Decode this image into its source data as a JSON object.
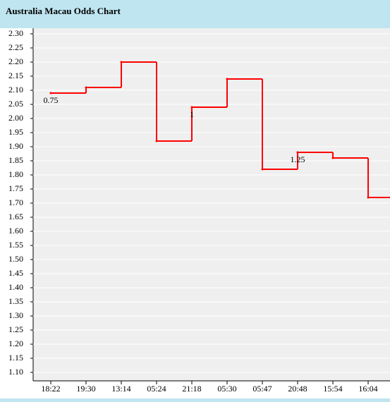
{
  "chart_data": {
    "type": "step",
    "title": "Australia Macau Odds Chart",
    "categories": [
      "18:22",
      "19:30",
      "13:14",
      "05:24",
      "21:18",
      "05:30",
      "05:47",
      "20:48",
      "15:54",
      "16:04"
    ],
    "values": [
      2.09,
      2.11,
      2.2,
      1.92,
      2.04,
      2.14,
      1.82,
      1.88,
      1.86,
      1.72
    ],
    "handicap_labels": [
      "0.75",
      null,
      null,
      null,
      "1",
      null,
      null,
      "1.25",
      null,
      null
    ],
    "color": "#ff0000",
    "ylim": [
      1.07,
      2.32
    ],
    "yticks": [
      {
        "value": 2.3,
        "label": "2.30"
      },
      2.25,
      {
        "value": 2.2,
        "label": "2.20"
      },
      2.15,
      {
        "value": 2.1,
        "label": "2.10"
      },
      2.05,
      {
        "value": 2.0,
        "label": "2.00"
      },
      1.95,
      {
        "value": 1.9,
        "label": "1.90"
      },
      1.85,
      {
        "value": 1.8,
        "label": "1.80"
      },
      1.75,
      {
        "value": 1.7,
        "label": "1.70"
      },
      1.65,
      {
        "value": 1.6,
        "label": "1.60"
      },
      1.55,
      {
        "value": 1.5,
        "label": "1.50"
      },
      1.45,
      {
        "value": 1.4,
        "label": "1.40"
      },
      1.35,
      {
        "value": 1.3,
        "label": "1.30"
      },
      1.25,
      {
        "value": 1.2,
        "label": "1.20"
      },
      1.15,
      {
        "value": 1.1,
        "label": "1.10"
      }
    ],
    "grid": true
  }
}
